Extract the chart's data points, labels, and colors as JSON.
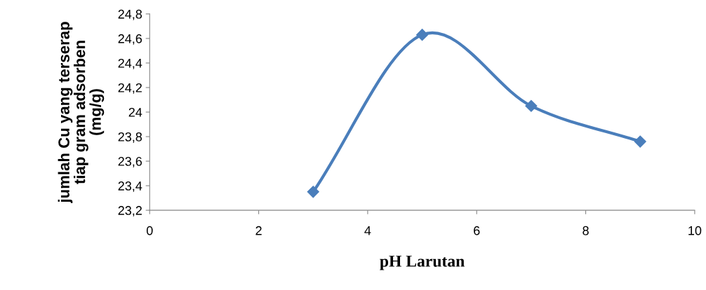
{
  "chart_data": {
    "type": "line",
    "xlabel": "pH Larutan",
    "ylabel": "jumlah Cu yang terserap\ntiap gram adsorben\n(mg/g)",
    "x": [
      3,
      5,
      7,
      9
    ],
    "series": [
      {
        "color": "#4a7ebb",
        "values": [
          23.35,
          24.63,
          24.05,
          23.76
        ]
      }
    ],
    "xlim": [
      0,
      10
    ],
    "xticks": [
      0,
      2,
      4,
      6,
      8,
      10
    ],
    "ylim": [
      23.2,
      24.8
    ],
    "yticks": [
      {
        "value": 23.2,
        "label": "23,2"
      },
      {
        "value": 23.4,
        "label": "23,4"
      },
      {
        "value": 23.6,
        "label": "23,6"
      },
      {
        "value": 23.8,
        "label": "23,8"
      },
      24,
      {
        "value": 24.2,
        "label": "24,2"
      },
      {
        "value": 24.4,
        "label": "24,4"
      },
      {
        "value": 24.6,
        "label": "24,6"
      },
      {
        "value": 24.8,
        "label": "24,8"
      }
    ],
    "marker": "diamond",
    "line_style": "solid",
    "grid": false,
    "legend": false
  }
}
